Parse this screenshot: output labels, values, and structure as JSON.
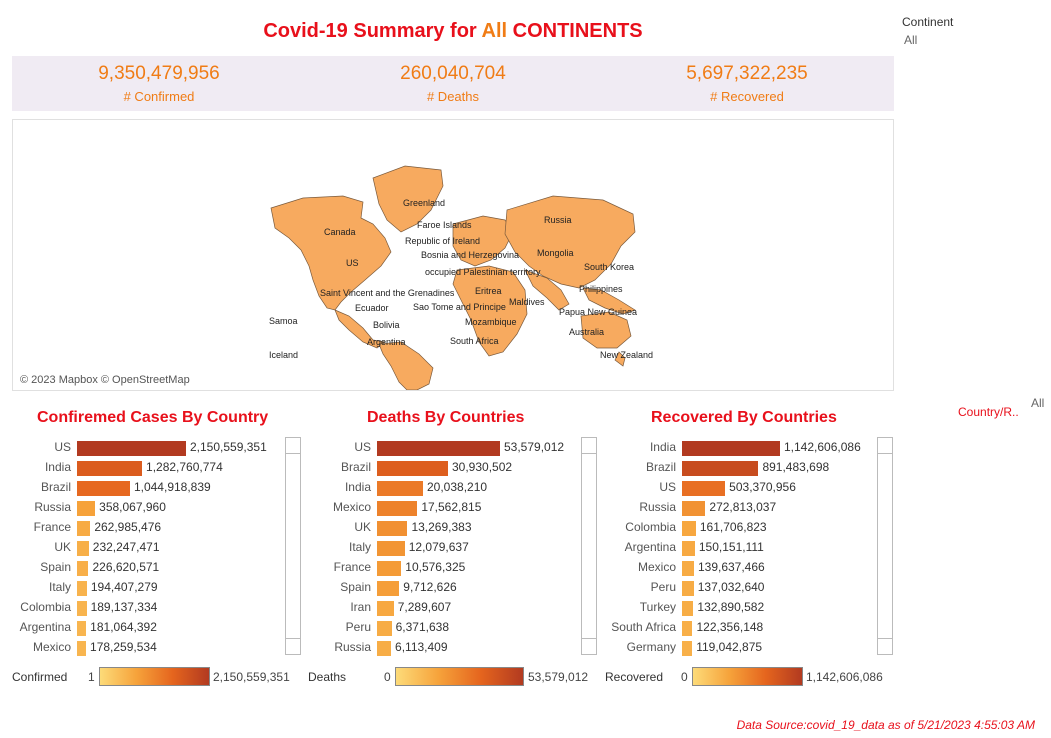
{
  "title": {
    "prefix": "Covid-19 Summary for ",
    "highlight": "All",
    "suffix": " CONTINENTS"
  },
  "continent_filter": {
    "label": "Continent",
    "value": "All"
  },
  "kpis": [
    {
      "value": "9,350,479,956",
      "label": "# Confirmed"
    },
    {
      "value": "260,040,704",
      "label": "# Deaths"
    },
    {
      "value": "5,697,322,235",
      "label": "# Recovered"
    }
  ],
  "map": {
    "attribution": "© 2023 Mapbox © OpenStreetMap",
    "land_color": "#f7aa5f",
    "labels": [
      "Greenland",
      "Russia",
      "Canada",
      "Faroe Islands",
      "Republic of Ireland",
      "Bosnia and Herzegovina",
      "Mongolia",
      "South Korea",
      "US",
      "occupied Palestinian territory",
      "Eritrea",
      "Philippines",
      "Saint Vincent and the Grenadines",
      "Maldives",
      "Samoa",
      "Ecuador",
      "Sao Tome and Principe",
      "Papua New Guinea",
      "Bolivia",
      "Mozambique",
      "Australia",
      "Argentina",
      "South Africa",
      "New Zealand",
      "Iceland"
    ]
  },
  "chart_data": [
    {
      "type": "bar",
      "title": "Confiremed Cases By Country",
      "categories": [
        "US",
        "India",
        "Brazil",
        "Russia",
        "France",
        "UK",
        "Spain",
        "Italy",
        "Colombia",
        "Argentina",
        "Mexico"
      ],
      "values": [
        2150559351,
        1282760774,
        1044918839,
        358067960,
        262985476,
        232247471,
        226620571,
        194407279,
        189137334,
        181064392,
        178259534
      ],
      "labels": [
        "2,150,559,351",
        "1,282,760,774",
        "1,044,918,839",
        "358,067,960",
        "262,985,476",
        "232,247,471",
        "226,620,571",
        "194,407,279",
        "189,137,334",
        "181,064,392",
        "178,259,534"
      ],
      "legend": {
        "title": "Confirmed",
        "min": "1",
        "max": "2,150,559,351"
      }
    },
    {
      "type": "bar",
      "title": "Deaths By Countries",
      "categories": [
        "US",
        "Brazil",
        "India",
        "Mexico",
        "UK",
        "Italy",
        "France",
        "Spain",
        "Iran",
        "Peru",
        "Russia"
      ],
      "values": [
        53579012,
        30930502,
        20038210,
        17562815,
        13269383,
        12079637,
        10576325,
        9712626,
        7289607,
        6371638,
        6113409
      ],
      "labels": [
        "53,579,012",
        "30,930,502",
        "20,038,210",
        "17,562,815",
        "13,269,383",
        "12,079,637",
        "10,576,325",
        "9,712,626",
        "7,289,607",
        "6,371,638",
        "6,113,409"
      ],
      "legend": {
        "title": "Deaths",
        "min": "0",
        "max": "53,579,012"
      }
    },
    {
      "type": "bar",
      "title": "Recovered By Countries",
      "categories": [
        "India",
        "Brazil",
        "US",
        "Russia",
        "Colombia",
        "Argentina",
        "Mexico",
        "Peru",
        "Turkey",
        "South Africa",
        "Germany"
      ],
      "values": [
        1142606086,
        891483698,
        503370956,
        272813037,
        161706823,
        150151111,
        139637466,
        137032640,
        132890582,
        122356148,
        119042875
      ],
      "labels": [
        "1,142,606,086",
        "891,483,698",
        "503,370,956",
        "272,813,037",
        "161,706,823",
        "150,151,111",
        "139,637,466",
        "137,032,640",
        "132,890,582",
        "122,356,148",
        "119,042,875"
      ],
      "legend": {
        "title": "Recovered",
        "min": "0",
        "max": "1,142,606,086"
      }
    }
  ],
  "country_filter": {
    "value": "All",
    "label": "Country/R.."
  },
  "source": "Data Source:covid_19_data as of 5/21/2023 4:55:03 AM",
  "colors": {
    "accent_red": "#e8101b",
    "accent_orange": "#f07c15",
    "kpi_band": "#f0ebf3",
    "ramp": [
      "#fddb79",
      "#f6a33b",
      "#e5651e",
      "#b23a20"
    ]
  }
}
